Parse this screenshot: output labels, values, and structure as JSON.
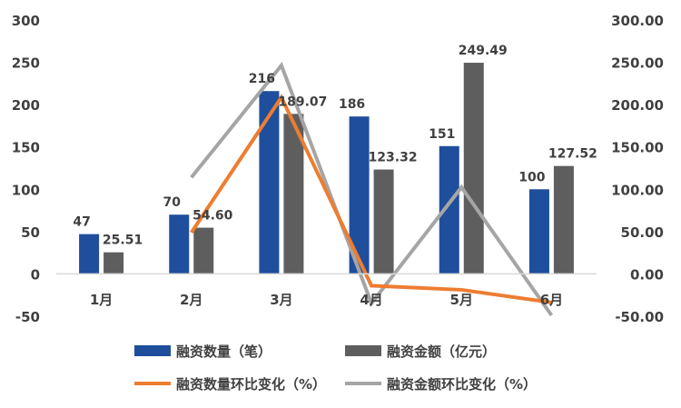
{
  "chart_data": {
    "type": "bar",
    "categories": [
      "1月",
      "2月",
      "3月",
      "4月",
      "5月",
      "6月"
    ],
    "series": [
      {
        "name": "融资数量（笔）",
        "type": "bar",
        "axis": "left",
        "color": "#1F4E9C",
        "values": [
          47,
          70,
          216,
          186,
          151,
          100
        ],
        "labels": [
          "47",
          "70",
          "216",
          "186",
          "151",
          "100"
        ]
      },
      {
        "name": "融资金额（亿元）",
        "type": "bar",
        "axis": "left",
        "color": "#5E5E5E",
        "values": [
          25.51,
          54.6,
          189.07,
          123.32,
          249.49,
          127.52
        ],
        "labels": [
          "25.51",
          "54.60",
          "189.07",
          "123.32",
          "249.49",
          "127.52"
        ]
      },
      {
        "name": "融资数量环比变化（%）",
        "type": "line",
        "axis": "right",
        "color": "#ED7D31",
        "values": [
          null,
          48.9,
          208.6,
          -13.9,
          -18.8,
          -33.8
        ]
      },
      {
        "name": "融资金额环比变化（%）",
        "type": "line",
        "axis": "right",
        "color": "#A5A5A5",
        "values": [
          null,
          114.0,
          246.3,
          -34.8,
          102.3,
          -48.9
        ]
      }
    ],
    "y_left": {
      "min": -50,
      "max": 300,
      "ticks": [
        -50,
        0,
        50,
        100,
        150,
        200,
        250,
        300
      ],
      "tick_labels": [
        "-50",
        "0",
        "50",
        "100",
        "150",
        "200",
        "250",
        "300"
      ]
    },
    "y_right": {
      "min": -50,
      "max": 300,
      "ticks": [
        -50,
        0,
        50,
        100,
        150,
        200,
        250,
        300
      ],
      "tick_labels": [
        "-50.00",
        "0.00",
        "50.00",
        "100.00",
        "150.00",
        "200.00",
        "250.00",
        "300.00"
      ]
    },
    "title": "",
    "xlabel": "",
    "ylabel": "",
    "grid": false,
    "legend_position": "bottom",
    "label_color": "#404040",
    "axis_color": "#D9D9D9"
  }
}
